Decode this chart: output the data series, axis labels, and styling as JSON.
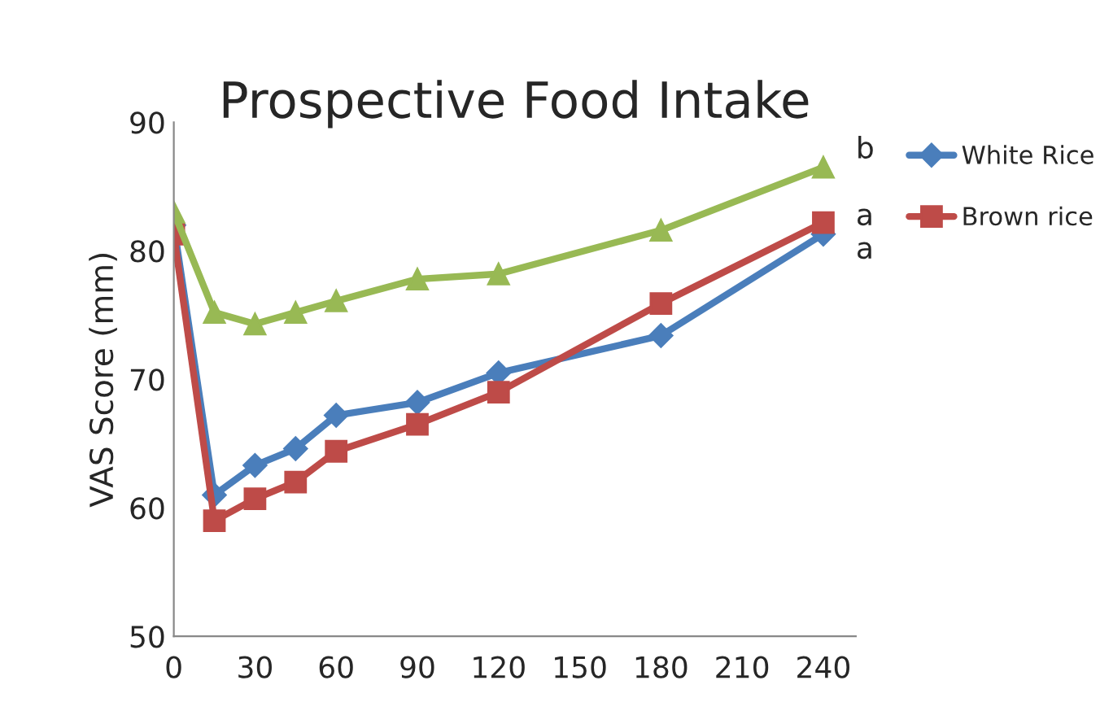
{
  "chart_data": {
    "type": "line",
    "title": "Prospective Food Intake",
    "ylabel": "VAS Score (mm)",
    "x": [
      0,
      15,
      30,
      45,
      60,
      90,
      120,
      180,
      240
    ],
    "series": [
      {
        "name": "White Rice",
        "color": "#4a7ebb",
        "marker": "diamond",
        "values": [
          82.0,
          61.0,
          63.3,
          64.6,
          67.2,
          68.2,
          70.5,
          73.4,
          81.3
        ]
      },
      {
        "name": "Brown rice",
        "color": "#be4b48",
        "marker": "square",
        "values": [
          81.3,
          59.0,
          60.7,
          62.0,
          64.4,
          66.5,
          69.0,
          75.9,
          82.2
        ]
      },
      {
        "color": "#98b954",
        "marker": "triangle",
        "values": [
          83.0,
          75.2,
          74.3,
          75.2,
          76.1,
          77.8,
          78.2,
          81.6,
          86.5
        ]
      }
    ],
    "xlim": [
      0,
      252
    ],
    "xticks": [
      0,
      30,
      60,
      90,
      120,
      150,
      180,
      210,
      240
    ],
    "ylim": [
      50,
      90
    ],
    "yticks": [
      50,
      60,
      70,
      80,
      90
    ],
    "annotations": [
      "b",
      "a",
      "a"
    ],
    "legend": "right",
    "grid": false,
    "line_style": "solid"
  }
}
